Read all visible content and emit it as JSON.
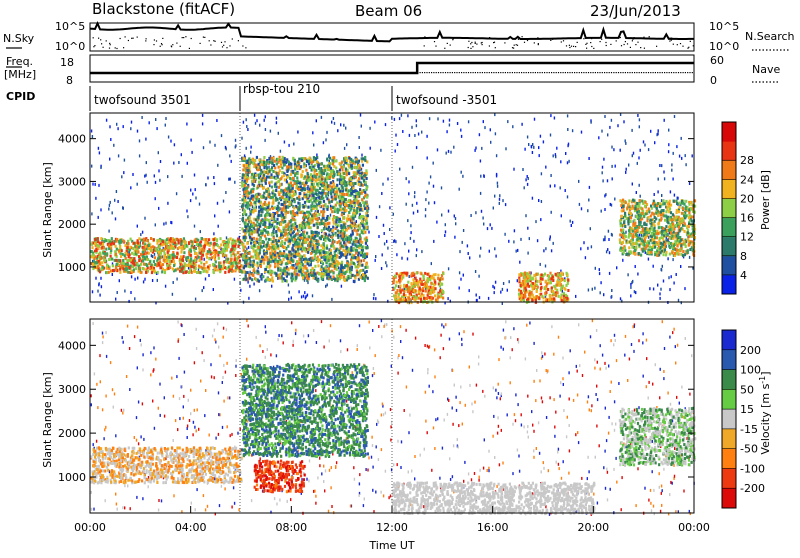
{
  "header": {
    "station": "Blackstone (fitACF)",
    "beam": "Beam 06",
    "date": "23/Jun/2013"
  },
  "sky_panel": {
    "left_label": "N.Sky",
    "right_label": "N.Search",
    "left_ticks": [
      "10^5",
      "10^0"
    ],
    "right_ticks": [
      "10^5",
      "10^0"
    ]
  },
  "freq_panel": {
    "left_label_1": "Freq.",
    "left_label_2": "[MHz]",
    "right_label": "Nave",
    "left_ticks": [
      "18",
      "8"
    ],
    "right_ticks": [
      "60",
      "0"
    ]
  },
  "cpid": {
    "label": "CPID",
    "segments": [
      {
        "name": "twofsound 3501",
        "start_hour": 0
      },
      {
        "name": "rbsp-tou 210",
        "start_hour": 6
      },
      {
        "name": "twofsound -3501",
        "start_hour": 12
      }
    ]
  },
  "xaxis": {
    "label": "Time UT",
    "ticks": [
      "00:00",
      "04:00",
      "08:00",
      "12:00",
      "16:00",
      "20:00",
      "00:00"
    ]
  },
  "colors": {
    "power_scale": [
      "#0a22e8",
      "#1f4fa0",
      "#2c7a6a",
      "#3aa05c",
      "#8ccf46",
      "#f0b21e",
      "#f07a18",
      "#e83412",
      "#d80808"
    ],
    "velocity_scale": [
      "#1a2ad0",
      "#2a5ab0",
      "#3a8a4a",
      "#66cc44",
      "#c8c8c8",
      "#f0a828",
      "#ff8010",
      "#ee3a10",
      "#dd0a0a"
    ]
  },
  "chart_data": [
    {
      "type": "heatmap",
      "title": "",
      "xlabel": "",
      "ylabel": "Slant Range [km]",
      "xlim": [
        0,
        24
      ],
      "ylim": [
        180,
        4600
      ],
      "yticks": [
        1000,
        2000,
        3000,
        4000
      ],
      "colorbar": {
        "label": "Power [dB]",
        "ticks": [
          "4",
          "8",
          "12",
          "16",
          "20",
          "24",
          "28"
        ]
      },
      "features": [
        {
          "desc": "ground/ionospheric band",
          "hours": [
            0,
            6
          ],
          "range_km": [
            900,
            1700
          ],
          "power_db": [
            16,
            30
          ]
        },
        {
          "desc": "rising arcs",
          "hours": [
            6,
            11
          ],
          "range_km": [
            700,
            3600
          ],
          "power_db": [
            8,
            28
          ]
        },
        {
          "desc": "near-range echoes",
          "hours": [
            12,
            14
          ],
          "range_km": [
            200,
            900
          ],
          "power_db": [
            20,
            30
          ]
        },
        {
          "desc": "near-range echoes",
          "hours": [
            17,
            19
          ],
          "range_km": [
            200,
            900
          ],
          "power_db": [
            20,
            30
          ]
        },
        {
          "desc": "late band",
          "hours": [
            21,
            24
          ],
          "range_km": [
            1300,
            2600
          ],
          "power_db": [
            12,
            26
          ]
        }
      ]
    },
    {
      "type": "heatmap",
      "title": "",
      "xlabel": "Time UT",
      "ylabel": "Slant Range [km]",
      "xlim": [
        0,
        24
      ],
      "ylim": [
        180,
        4600
      ],
      "yticks": [
        1000,
        2000,
        3000,
        4000
      ],
      "colorbar": {
        "label": "Velocity [m s^-1]",
        "ticks": [
          "200",
          "100",
          "50",
          "15",
          "-15",
          "-50",
          "-100",
          "-200"
        ]
      },
      "features": [
        {
          "desc": "ground scatter band",
          "hours": [
            0,
            6
          ],
          "range_km": [
            900,
            1700
          ],
          "velocity": [
            -50,
            15
          ]
        },
        {
          "desc": "positive-velocity arcs",
          "hours": [
            6,
            11
          ],
          "range_km": [
            1500,
            3600
          ],
          "velocity": [
            15,
            100
          ]
        },
        {
          "desc": "negative-velocity patch",
          "hours": [
            6.5,
            8.5
          ],
          "range_km": [
            700,
            1400
          ],
          "velocity": [
            -200,
            -50
          ]
        },
        {
          "desc": "ground scatter",
          "hours": [
            12,
            20
          ],
          "range_km": [
            200,
            900
          ],
          "velocity": [
            -15,
            15
          ]
        },
        {
          "desc": "late band",
          "hours": [
            21,
            24
          ],
          "range_km": [
            1300,
            2600
          ],
          "velocity": [
            -15,
            50
          ]
        }
      ]
    }
  ]
}
